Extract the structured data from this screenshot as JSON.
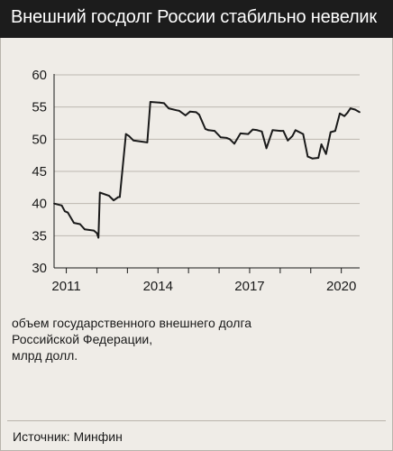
{
  "title": "Внешний госдолг России стабильно невелик",
  "caption_lines": [
    "объем государственного внешнего долга",
    "Российской Федерации,",
    "млрд долл."
  ],
  "source": "Источник: Минфин",
  "colors": {
    "line": "#1a1a1a",
    "grid": "#bdb8b0",
    "header_bg": "#1c1c1c",
    "background": "#efece7"
  },
  "chart_data": {
    "type": "line",
    "title": "Внешний госдолг России стабильно невелик",
    "xlabel": "",
    "ylabel": "",
    "xlim": [
      2010.6,
      2020.6
    ],
    "ylim": [
      30,
      60
    ],
    "x_ticks": [
      2011,
      2014,
      2017,
      2020
    ],
    "y_ticks": [
      30,
      35,
      40,
      45,
      50,
      55,
      60
    ],
    "grid": "horizontal",
    "series": [
      {
        "name": "",
        "x": [
          2010.6,
          2010.85,
          2010.95,
          2011.05,
          2011.25,
          2011.45,
          2011.6,
          2011.9,
          2012.0,
          2012.05,
          2012.1,
          2012.4,
          2012.55,
          2012.7,
          2012.75,
          2012.95,
          2013.05,
          2013.2,
          2013.65,
          2013.75,
          2014.05,
          2014.2,
          2014.35,
          2014.6,
          2014.7,
          2014.9,
          2015.05,
          2015.25,
          2015.35,
          2015.55,
          2015.65,
          2015.85,
          2016.05,
          2016.25,
          2016.35,
          2016.5,
          2016.7,
          2016.95,
          2017.1,
          2017.25,
          2017.4,
          2017.55,
          2017.75,
          2018.0,
          2018.1,
          2018.25,
          2018.4,
          2018.5,
          2018.75,
          2018.9,
          2019.05,
          2019.25,
          2019.35,
          2019.5,
          2019.65,
          2019.8,
          2019.95,
          2020.1,
          2020.2,
          2020.3,
          2020.45,
          2020.6
        ],
        "values": [
          40.0,
          39.7,
          38.8,
          38.6,
          37.0,
          36.8,
          36.0,
          35.8,
          35.4,
          34.7,
          41.7,
          41.2,
          40.5,
          41.0,
          41.0,
          50.8,
          50.5,
          49.8,
          49.5,
          55.8,
          55.7,
          55.6,
          54.8,
          54.5,
          54.4,
          53.7,
          54.3,
          54.2,
          53.8,
          51.6,
          51.4,
          51.3,
          50.3,
          50.2,
          50.0,
          49.3,
          50.9,
          50.8,
          51.5,
          51.4,
          51.2,
          48.6,
          51.4,
          51.3,
          51.3,
          49.8,
          50.5,
          51.4,
          50.8,
          47.3,
          47.0,
          47.1,
          49.2,
          47.7,
          51.1,
          51.3,
          54.0,
          53.6,
          54.1,
          54.8,
          54.6,
          54.2
        ]
      }
    ]
  }
}
